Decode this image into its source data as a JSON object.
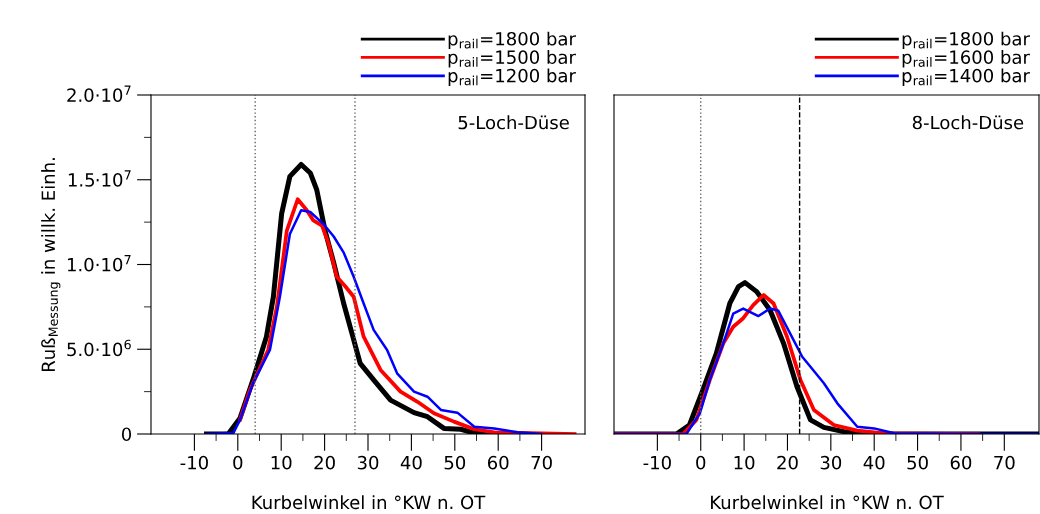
{
  "chart_data": [
    {
      "type": "line",
      "xlabel": "Kurbelwinkel in °KW n. OT",
      "ylabel": "Ruß$_{Messung}$ in willk. Einh.",
      "annotations": [
        "5-Loch-Düse"
      ],
      "xlim": [
        -20,
        80
      ],
      "ylim": [
        0,
        20000000
      ],
      "xticks": [
        -10,
        {
          "value": -5,
          "label": null
        },
        0,
        {
          "value": 5,
          "label": null
        },
        10,
        {
          "value": 15,
          "label": null
        },
        20,
        {
          "value": 25,
          "label": null
        },
        30,
        {
          "value": 35,
          "label": null
        },
        40,
        {
          "value": 45,
          "label": null
        },
        50,
        {
          "value": 55,
          "label": null
        },
        60,
        {
          "value": 65,
          "label": null
        },
        70
      ],
      "yticks": [
        0,
        {
          "value": 2500000,
          "label": null
        },
        {
          "value": 5000000,
          "label": "5.0·10$^{6}$"
        },
        {
          "value": 7500000,
          "label": null
        },
        {
          "value": 10000000,
          "label": "1.0·10$^{7}$"
        },
        {
          "value": 12500000,
          "label": null
        },
        {
          "value": 15000000,
          "label": "1.5·10$^{7}$"
        },
        {
          "value": 17500000,
          "label": null
        },
        {
          "value": 20000000,
          "label": "2.0·10$^{7}$"
        }
      ],
      "legend": "top right",
      "grid": false,
      "line_style": "solid",
      "ref_lines": [
        {
          "axis": "x",
          "value": 4,
          "color": "#666666",
          "line_style": "dotted"
        },
        {
          "axis": "x",
          "value": 27,
          "color": "#666666",
          "line_style": "dotted"
        }
      ],
      "series": [
        {
          "name": "p$_{rail}$=1800 bar",
          "color": "#000000",
          "x": [
            -7.2,
            -2.2,
            0.5,
            3.5,
            6.6,
            8.2,
            10.1,
            12.0,
            14.6,
            16.7,
            18.2,
            20.1,
            22.1,
            24.4,
            26.3,
            28.2,
            31.3,
            35.2,
            40.6,
            43.7,
            47.5,
            51.4,
            54.5,
            62
          ],
          "values": [
            0,
            0,
            930000,
            3190000,
            5740000,
            8100000,
            13000000,
            15200000,
            15900000,
            15400000,
            14400000,
            12000000,
            10100000,
            7700000,
            5940000,
            4170000,
            3190000,
            2000000,
            1260000,
            1020000,
            330000,
            280000,
            50000,
            0
          ]
        },
        {
          "name": "p$_{rail}$=1500 bar",
          "color": "#ff0000",
          "x": [
            0.5,
            2.8,
            7.0,
            9.0,
            11.3,
            13.8,
            15.9,
            17.4,
            19.4,
            20.9,
            22.8,
            24.8,
            26.7,
            29.0,
            32.9,
            37.5,
            41.4,
            45.2,
            49.8,
            54.5,
            59.1,
            77.6
          ],
          "values": [
            830000,
            2600000,
            4960000,
            7500000,
            12000000,
            13850000,
            13200000,
            12600000,
            12300000,
            11250000,
            9280000,
            8700000,
            8100000,
            5740000,
            3780000,
            2500000,
            1900000,
            1220000,
            730000,
            280000,
            100000,
            0
          ]
        },
        {
          "name": "p$_{rail}$=1200 bar",
          "color": "#0000ff",
          "x": [
            -7.2,
            -1,
            0.5,
            3.5,
            7.4,
            9.7,
            12.0,
            14.6,
            16.7,
            19.7,
            22.1,
            24.4,
            26.7,
            29.0,
            31.3,
            34.4,
            36.7,
            40.6,
            43.7,
            46.8,
            50.6,
            54.5,
            59.1,
            64.5,
            69.9
          ],
          "values": [
            0,
            70000,
            830000,
            2990000,
            4960000,
            8100000,
            11800000,
            13200000,
            13100000,
            12400000,
            11650000,
            10700000,
            9280000,
            7700000,
            6140000,
            4960000,
            3580000,
            2500000,
            2200000,
            1420000,
            1260000,
            430000,
            330000,
            100000,
            0
          ]
        }
      ]
    },
    {
      "type": "line",
      "xlabel": "Kurbelwinkel in °KW n. OT",
      "annotations": [
        "8-Loch-Düse"
      ],
      "xlim": [
        -20,
        78
      ],
      "ylim": [
        0,
        20000000
      ],
      "tick_labels": "x",
      "xticks": [
        -10,
        {
          "value": -5,
          "label": null
        },
        0,
        {
          "value": 5,
          "label": null
        },
        10,
        {
          "value": 15,
          "label": null
        },
        20,
        {
          "value": 25,
          "label": null
        },
        30,
        {
          "value": 35,
          "label": null
        },
        40,
        {
          "value": 45,
          "label": null
        },
        50,
        {
          "value": 55,
          "label": null
        },
        60,
        {
          "value": 65,
          "label": null
        },
        70
      ],
      "legend": "top right",
      "grid": false,
      "line_style": "solid",
      "ref_lines": [
        {
          "axis": "x",
          "value": 0,
          "color": "#666666",
          "line_style": "dotted"
        },
        {
          "axis": "x",
          "value": 22.8,
          "color": "#000000",
          "line_style": "dashed"
        }
      ],
      "series": [
        {
          "name": "p$_{rail}$=1800 bar",
          "color": "#000000",
          "x": [
            -20,
            -5.6,
            -2.6,
            0.5,
            3.6,
            6.7,
            8.7,
            10.2,
            12.9,
            16.0,
            19.1,
            22.2,
            25.3,
            28.4,
            33.0,
            39.2,
            78
          ],
          "values": [
            0,
            0,
            530000,
            2600000,
            4760000,
            7700000,
            8700000,
            8930000,
            8400000,
            7300000,
            5350000,
            2790000,
            830000,
            390000,
            140000,
            0,
            0
          ]
        },
        {
          "name": "p$_{rail}$=1600 bar",
          "color": "#ff0000",
          "x": [
            -20,
            -4.1,
            -1.0,
            2.1,
            5.2,
            7.5,
            9.8,
            12.1,
            14.5,
            16.8,
            19.9,
            23.0,
            26.1,
            30.7,
            36.1,
            42.3,
            64
          ],
          "values": [
            0,
            0,
            830000,
            3190000,
            5350000,
            6330000,
            6830000,
            7600000,
            8200000,
            7700000,
            5740000,
            3190000,
            1420000,
            530000,
            200000,
            40000,
            0
          ]
        },
        {
          "name": "p$_{rail}$=1400 bar",
          "color": "#0000ff",
          "x": [
            -20,
            -3.3,
            -0.2,
            2.1,
            5.2,
            7.5,
            9.8,
            13.3,
            16.0,
            17.9,
            20.6,
            23.4,
            25.3,
            28.4,
            31.5,
            36.1,
            40.0,
            44.6,
            64,
            78
          ],
          "values": [
            0,
            0,
            1220000,
            3190000,
            5350000,
            7100000,
            7400000,
            6960000,
            7400000,
            7270000,
            5940000,
            4560000,
            3970000,
            2990000,
            1810000,
            430000,
            330000,
            40000,
            0,
            0
          ]
        }
      ]
    }
  ]
}
